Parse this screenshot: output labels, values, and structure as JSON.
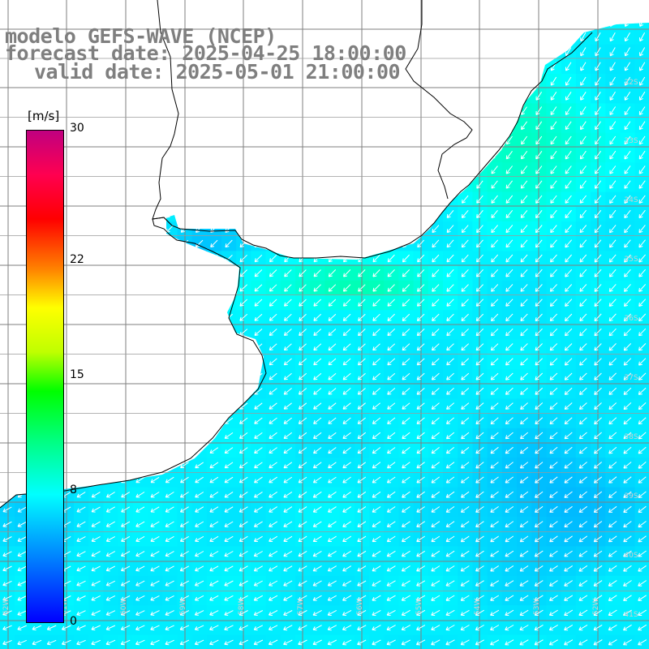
{
  "title": {
    "line1": "modelo GEFS-WAVE (NCEP)",
    "line2": "forecast date: 2025-04-25 18:00:00",
    "line3": "valid date: 2025-05-01 21:00:00"
  },
  "colorbar": {
    "unit": "[m/s]",
    "ticks": [
      {
        "label": "30",
        "value": 30
      },
      {
        "label": "22",
        "value": 22
      },
      {
        "label": "15",
        "value": 15
      },
      {
        "label": "8",
        "value": 8
      },
      {
        "label": "0",
        "value": 0
      }
    ],
    "min": 0,
    "max": 30
  },
  "colors": {
    "land": "#ffffff",
    "coastline": "#000000",
    "grid": "#7f7f7f",
    "arrow": "#ffffff",
    "title": "#7f7f7f"
  },
  "map": {
    "arrow_direction": "southwest",
    "right_edge_labels": [
      "32S",
      "33S",
      "34S",
      "35S",
      "36S",
      "37S",
      "38S",
      "39S",
      "40S",
      "41S"
    ],
    "bottom_edge_labels": [
      "62W",
      "61W",
      "60W",
      "59W",
      "58W",
      "57W",
      "56W",
      "55W",
      "54W",
      "53W",
      "52W"
    ]
  }
}
